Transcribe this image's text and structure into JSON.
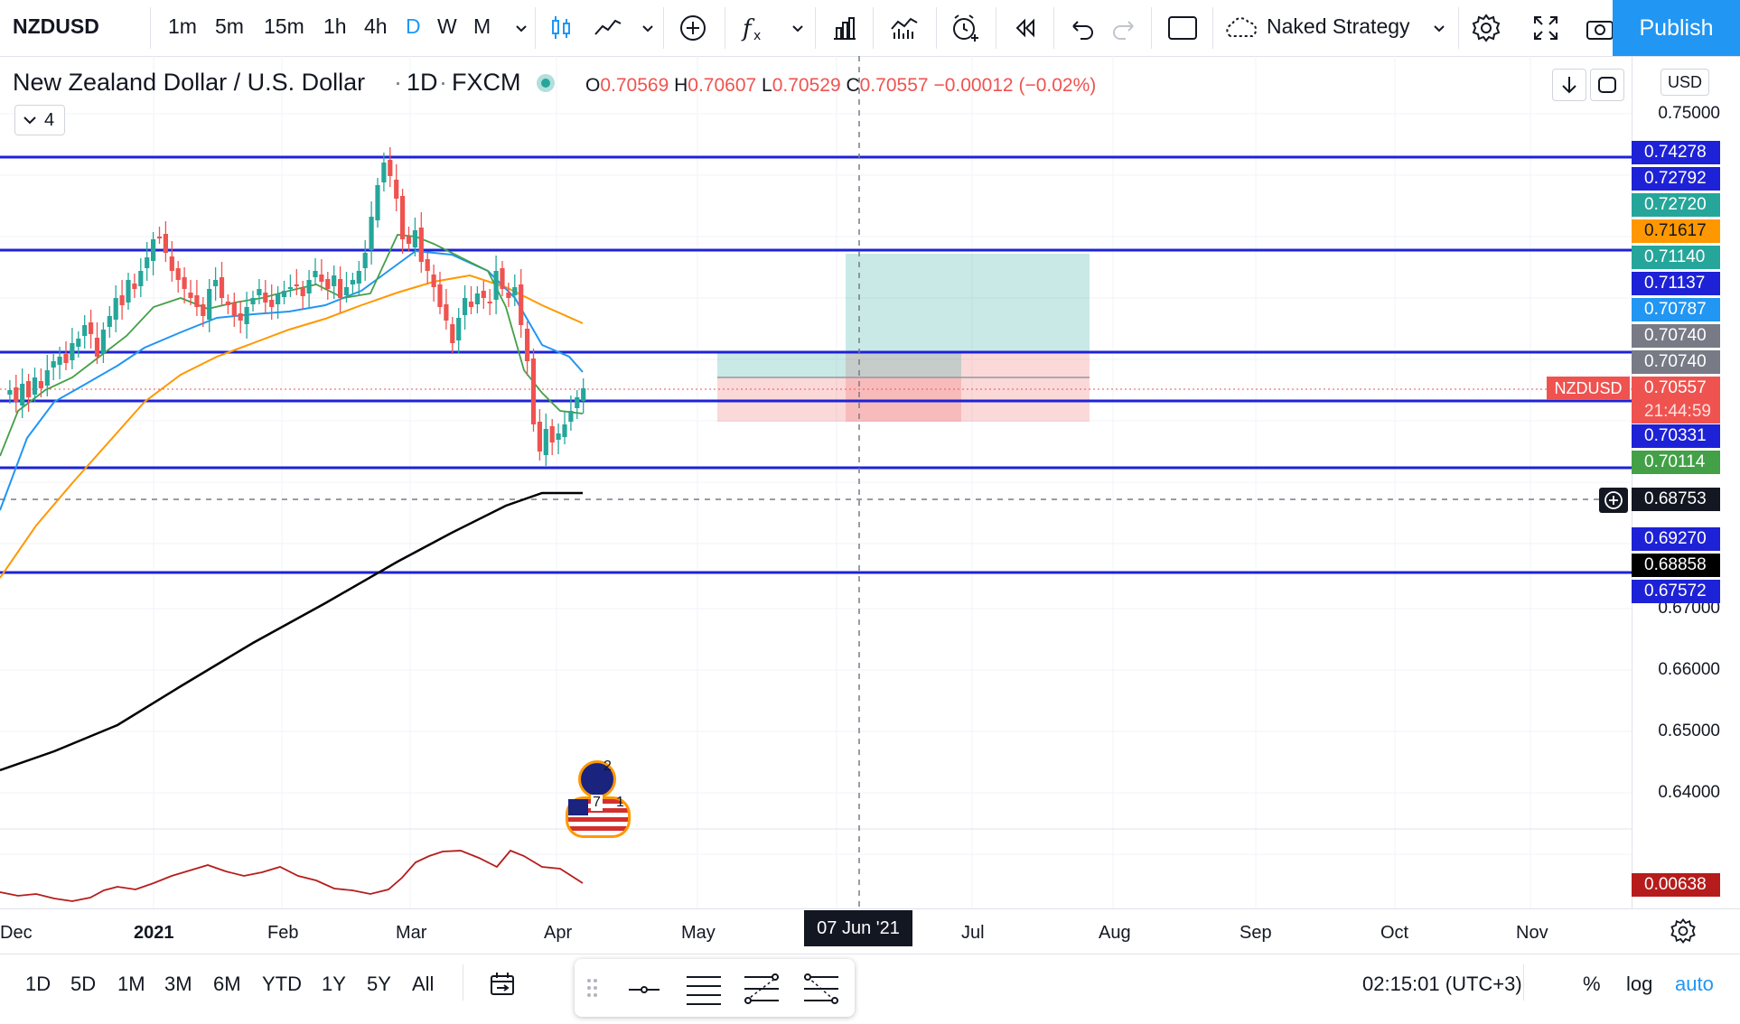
{
  "toolbar": {
    "symbol": "NZDUSD",
    "timeframes": [
      "1m",
      "5m",
      "15m",
      "1h",
      "4h",
      "D",
      "W",
      "M"
    ],
    "active_timeframe": "D",
    "strategy_name": "Naked Strategy",
    "publish_label": "Publish"
  },
  "header": {
    "title": "New Zealand Dollar / U.S. Dollar",
    "interval": "1D",
    "exchange": "FXCM",
    "open_label": "O",
    "open": "0.70569",
    "high_label": "H",
    "high": "0.70607",
    "low_label": "L",
    "low": "0.70529",
    "close_label": "C",
    "close": "0.70557",
    "change": "−0.00012 (−0.02%)",
    "indicators_collapsed_count": "4"
  },
  "price_axis": {
    "currency": "USD",
    "scale_labels": [
      "0.75000",
      "0.67000",
      "0.66000",
      "0.65000",
      "0.64000"
    ],
    "tags": [
      {
        "value": "0.74278",
        "color": "#1e22d6"
      },
      {
        "value": "0.72792",
        "color": "#1e22d6"
      },
      {
        "value": "0.72720",
        "color": "#26a69a"
      },
      {
        "value": "0.71617",
        "color": "#ff9800"
      },
      {
        "value": "0.71140",
        "color": "#26a69a"
      },
      {
        "value": "0.71137",
        "color": "#1e22d6"
      },
      {
        "value": "0.70787",
        "color": "#2196f3"
      },
      {
        "value": "0.70740",
        "color": "#787b86"
      },
      {
        "value": "0.70740",
        "color": "#787b86"
      },
      {
        "value": "0.70557",
        "color": "#ef5350"
      },
      {
        "value": "0.70331",
        "color": "#1e22d6"
      },
      {
        "value": "0.70114",
        "color": "#43a047"
      },
      {
        "value": "0.68753",
        "color": "#131722"
      },
      {
        "value": "0.69270",
        "color": "#1e22d6"
      },
      {
        "value": "0.68858",
        "color": "#000000"
      },
      {
        "value": "0.67572",
        "color": "#1e22d6"
      },
      {
        "value": "0.00638",
        "color": "#b71c1c"
      }
    ],
    "symbol_tag": "NZDUSD",
    "countdown": "21:44:59"
  },
  "time_axis": {
    "labels": [
      "Dec",
      "2021",
      "Feb",
      "Mar",
      "Apr",
      "May",
      "Jul",
      "Aug",
      "Sep",
      "Oct",
      "Nov"
    ],
    "crosshair_date": "07 Jun '21"
  },
  "events": {
    "nz_count": "2",
    "us_count": "7",
    "us_extra": "1"
  },
  "bottom_bar": {
    "ranges": [
      "1D",
      "5D",
      "1M",
      "3M",
      "6M",
      "YTD",
      "1Y",
      "5Y",
      "All"
    ],
    "clock": "02:15:01 (UTC+3)",
    "percent_label": "%",
    "log_label": "log",
    "auto_label": "auto"
  },
  "colors": {
    "accent": "#2196f3",
    "up": "#26a69a",
    "down": "#ef5350",
    "level_line": "#1e22d6"
  }
}
